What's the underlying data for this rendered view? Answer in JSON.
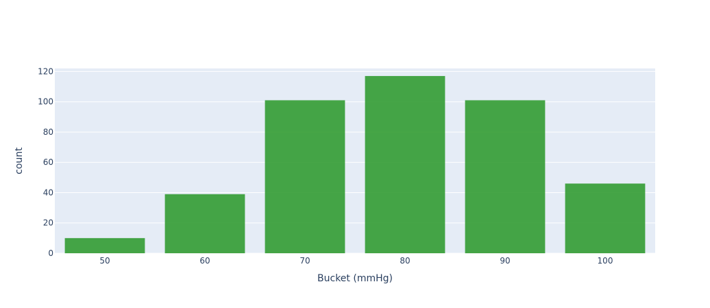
{
  "chart_data": {
    "type": "bar",
    "categories": [
      "50",
      "60",
      "70",
      "80",
      "90",
      "100"
    ],
    "values": [
      10,
      39,
      101,
      117,
      101,
      46
    ],
    "xlabel": "Bucket (mmHg)",
    "ylabel": "count",
    "ylim": [
      0,
      122
    ],
    "yticks": [
      0,
      20,
      40,
      60,
      80,
      100,
      120
    ],
    "grid": true,
    "bar_color": "#2e9a2e",
    "plot_background": "#e5ecf6",
    "text_color": "#2a3f5f"
  }
}
